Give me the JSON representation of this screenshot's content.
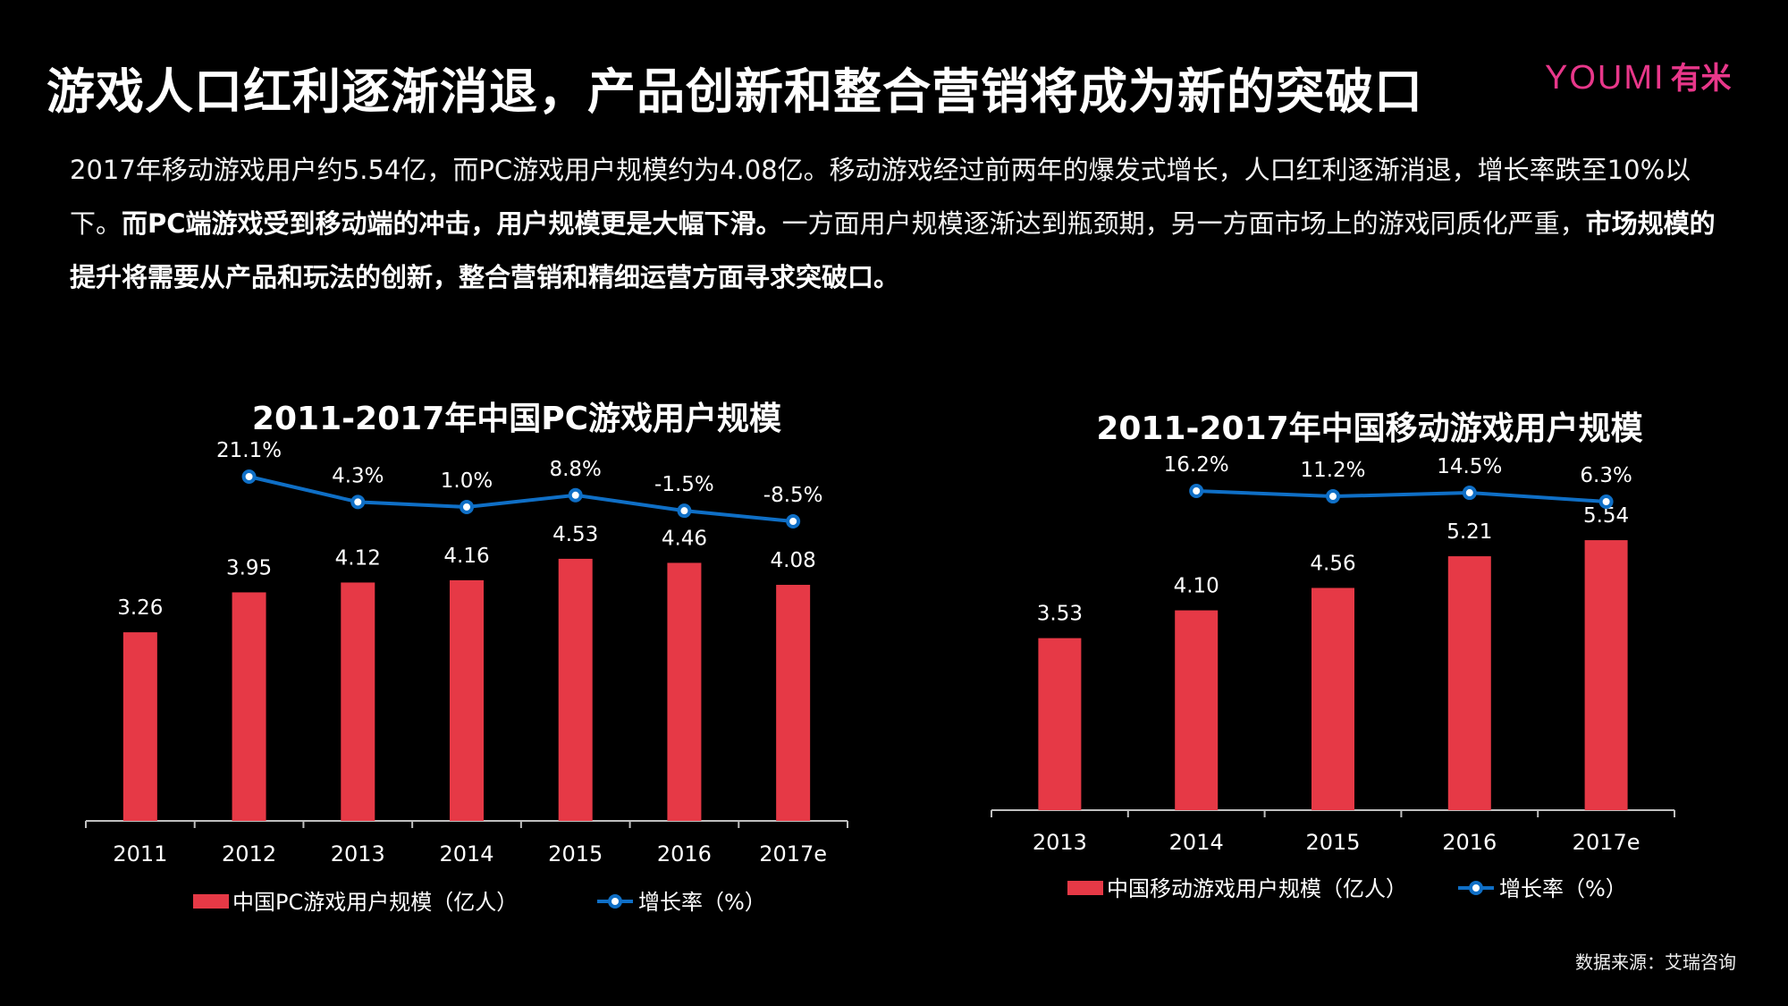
{
  "headline": "游戏人口红利逐渐消退，产品创新和整合营销将成为新的突破口",
  "logo": {
    "brand": "YOUMI",
    "cn": "有米"
  },
  "intro": {
    "p1": "2017年移动游戏用户约5.54亿，而PC游戏用户规模约为4.08亿。移动游戏经过前两年的爆发式增长，人口红利逐渐消退，增长率跌至10%以下。",
    "b1": "而PC端游戏受到移动端的冲击，用户规模更是大幅下滑。",
    "p2": "一方面用户规模逐渐达到瓶颈期，另一方面市场上的游戏同质化严重，",
    "b2": "市场规模的提升将需要从产品和玩法的创新，整合营销和精细运营方面寻求突破口。"
  },
  "colors": {
    "bar": "#e63946",
    "line": "#0f6fc6",
    "background": "#000000"
  },
  "chart_data": [
    {
      "type": "bar",
      "title": "2011-2017年中国PC游戏用户规模",
      "categories": [
        "2011",
        "2012",
        "2013",
        "2014",
        "2015",
        "2016",
        "2017e"
      ],
      "series": [
        {
          "name": "中国PC游戏用户规模（亿人）",
          "type": "bar",
          "values": [
            3.26,
            3.95,
            4.12,
            4.16,
            4.53,
            4.46,
            4.08
          ],
          "labels": [
            "3.26",
            "3.95",
            "4.12",
            "4.16",
            "4.53",
            "4.46",
            "4.08"
          ]
        },
        {
          "name": "增长率（%）",
          "type": "line",
          "values": [
            null,
            21.1,
            4.3,
            1.0,
            8.8,
            -1.5,
            -8.5
          ],
          "labels": [
            null,
            "21.1%",
            "4.3%",
            "1.0%",
            "8.8%",
            "-1.5%",
            "-8.5%"
          ]
        }
      ],
      "legend": "bottom"
    },
    {
      "type": "bar",
      "title": "2011-2017年中国移动游戏用户规模",
      "categories": [
        "2013",
        "2014",
        "2015",
        "2016",
        "2017e"
      ],
      "series": [
        {
          "name": "中国移动游戏用户规模（亿人）",
          "type": "bar",
          "values": [
            3.53,
            4.1,
            4.56,
            5.21,
            5.54
          ],
          "labels": [
            "3.53",
            "4.10",
            "4.56",
            "5.21",
            "5.54"
          ]
        },
        {
          "name": "增长率（%）",
          "type": "line",
          "values": [
            null,
            16.2,
            11.2,
            14.5,
            6.3
          ],
          "labels": [
            null,
            "16.2%",
            "11.2%",
            "14.5%",
            "6.3%"
          ]
        }
      ],
      "legend": "bottom"
    }
  ],
  "source": "数据来源：艾瑞咨询"
}
